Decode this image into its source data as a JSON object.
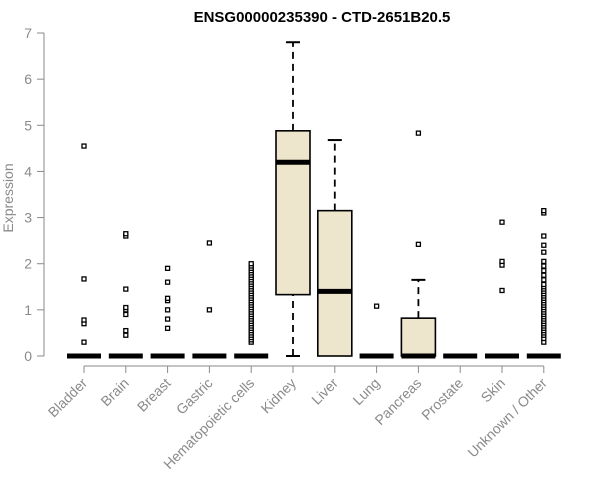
{
  "chart_data": {
    "type": "boxplot",
    "title": "ENSG00000235390 - CTD-2651B20.5",
    "xlabel": "",
    "ylabel": "Expression",
    "ylim": [
      0,
      7
    ],
    "yticks": [
      0,
      1,
      2,
      3,
      4,
      5,
      6,
      7
    ],
    "grid": false,
    "colors": {
      "box_fill": "#ede6cc",
      "outline": "#000000",
      "axis": "#8a8a8a",
      "label": "#8a8a8a"
    },
    "categories": [
      "Bladder",
      "Brain",
      "Breast",
      "Gastric",
      "Hematopoietic cells",
      "Kidney",
      "Liver",
      "Lung",
      "Pancreas",
      "Prostate",
      "Skin",
      "Unknown / Other"
    ],
    "boxes": [
      {
        "q1": 0,
        "median": 0,
        "q3": 0,
        "whisker_low": 0,
        "whisker_high": 0,
        "outliers": [
          0.3,
          0.7,
          0.78,
          1.67,
          4.55
        ]
      },
      {
        "q1": 0,
        "median": 0,
        "q3": 0,
        "whisker_low": 0,
        "whisker_high": 0,
        "outliers": [
          0.45,
          0.55,
          0.9,
          1.0,
          1.05,
          1.45,
          2.6,
          2.65
        ]
      },
      {
        "q1": 0,
        "median": 0,
        "q3": 0,
        "whisker_low": 0,
        "whisker_high": 0,
        "outliers": [
          0.6,
          0.8,
          1.0,
          1.2,
          1.25,
          1.6,
          1.9
        ]
      },
      {
        "q1": 0,
        "median": 0,
        "q3": 0,
        "whisker_low": 0,
        "whisker_high": 0,
        "outliers": [
          1.0,
          2.45
        ]
      },
      {
        "q1": 0,
        "median": 0,
        "q3": 0,
        "whisker_low": 0,
        "whisker_high": 0,
        "outliers": [
          0.3,
          0.35,
          0.4,
          0.45,
          0.5,
          0.55,
          0.6,
          0.65,
          0.7,
          0.75,
          0.8,
          0.85,
          0.9,
          0.95,
          1.0,
          1.05,
          1.1,
          1.15,
          1.2,
          1.25,
          1.3,
          1.35,
          1.4,
          1.45,
          1.5,
          1.55,
          1.6,
          1.65,
          1.7,
          1.75,
          1.8,
          1.85,
          1.9,
          1.95,
          2.0
        ]
      },
      {
        "q1": 1.33,
        "median": 4.2,
        "q3": 4.88,
        "whisker_low": 0,
        "whisker_high": 6.8,
        "outliers": []
      },
      {
        "q1": 0,
        "median": 1.4,
        "q3": 3.15,
        "whisker_low": 0,
        "whisker_high": 4.68,
        "outliers": []
      },
      {
        "q1": 0,
        "median": 0,
        "q3": 0,
        "whisker_low": 0,
        "whisker_high": 0,
        "outliers": [
          1.08
        ]
      },
      {
        "q1": 0,
        "median": 0,
        "q3": 0.82,
        "whisker_low": 0,
        "whisker_high": 1.65,
        "outliers": [
          2.42,
          4.83
        ]
      },
      {
        "q1": 0,
        "median": 0,
        "q3": 0,
        "whisker_low": 0,
        "whisker_high": 0,
        "outliers": []
      },
      {
        "q1": 0,
        "median": 0,
        "q3": 0,
        "whisker_low": 0,
        "whisker_high": 0,
        "outliers": [
          1.42,
          1.97,
          2.05,
          2.9
        ]
      },
      {
        "q1": 0,
        "median": 0,
        "q3": 0,
        "whisker_low": 0,
        "whisker_high": 0,
        "outliers": [
          0.3,
          0.38,
          0.45,
          0.5,
          0.55,
          0.6,
          0.65,
          0.7,
          0.75,
          0.8,
          0.85,
          0.9,
          0.95,
          1.0,
          1.05,
          1.1,
          1.15,
          1.2,
          1.25,
          1.3,
          1.35,
          1.4,
          1.45,
          1.5,
          1.55,
          1.65,
          1.75,
          1.85,
          1.95,
          2.05,
          2.25,
          2.4,
          2.6,
          3.1,
          3.15
        ]
      }
    ]
  }
}
